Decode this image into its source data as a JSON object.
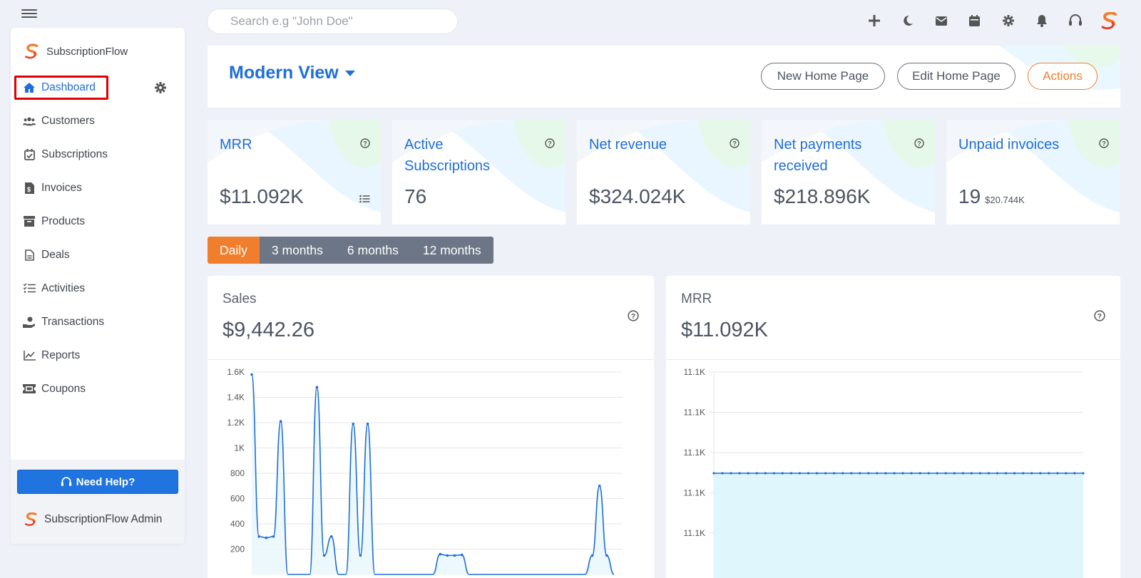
{
  "search": {
    "placeholder": "Search e.g \"John Doe\""
  },
  "topbar": {
    "icons": [
      "plus-icon",
      "moon-icon",
      "mail-icon",
      "calendar-icon",
      "gear-icon",
      "bell-icon",
      "headset-icon",
      "subscriptionflow-logo-icon"
    ]
  },
  "brand": {
    "name": "SubscriptionFlow"
  },
  "sidebar": {
    "items": [
      {
        "label": "Dashboard",
        "icon": "home-icon",
        "active": true
      },
      {
        "label": "Customers",
        "icon": "users-icon"
      },
      {
        "label": "Subscriptions",
        "icon": "calendar-check-icon"
      },
      {
        "label": "Invoices",
        "icon": "invoice-icon"
      },
      {
        "label": "Products",
        "icon": "box-icon"
      },
      {
        "label": "Deals",
        "icon": "document-icon"
      },
      {
        "label": "Activities",
        "icon": "checklist-icon"
      },
      {
        "label": "Transactions",
        "icon": "hand-coin-icon"
      },
      {
        "label": "Reports",
        "icon": "line-chart-icon"
      },
      {
        "label": "Coupons",
        "icon": "ticket-icon"
      }
    ],
    "help_label": "Need Help?",
    "admin_label": "SubscriptionFlow Admin"
  },
  "view": {
    "title": "Modern View",
    "buttons": {
      "new_home": "New Home Page",
      "edit_home": "Edit Home Page",
      "actions": "Actions"
    }
  },
  "cards": [
    {
      "title": "MRR",
      "value": "$11.092K",
      "sub": ""
    },
    {
      "title": "Active Subscriptions",
      "value": "76",
      "sub": ""
    },
    {
      "title": "Net revenue",
      "value": "$324.024K",
      "sub": ""
    },
    {
      "title": "Net payments received",
      "value": "$218.896K",
      "sub": ""
    },
    {
      "title": "Unpaid invoices",
      "value": "19",
      "sub": "$20.744K"
    }
  ],
  "ranges": [
    {
      "label": "Daily",
      "active": true
    },
    {
      "label": "3 months"
    },
    {
      "label": "6 months"
    },
    {
      "label": "12 months"
    }
  ],
  "panels": {
    "sales": {
      "label": "Sales",
      "value": "$9,442.26"
    },
    "mrr": {
      "label": "MRR",
      "value": "$11.092K"
    }
  },
  "colors": {
    "accent": "#1e6fd9",
    "orange": "#f07e2c",
    "active_outline": "#e00000"
  },
  "chart_data": [
    {
      "type": "line",
      "title": "Sales",
      "ytick_labels": [
        "1.6K",
        "1.4K",
        "1.2K",
        "1K",
        "800",
        "600",
        "400",
        "200"
      ],
      "ylim": [
        0,
        1600
      ],
      "series": [
        {
          "values": [
            1580,
            300,
            290,
            300,
            1210,
            0,
            0,
            0,
            0,
            1480,
            150,
            300,
            0,
            0,
            1190,
            150,
            1190,
            0,
            0,
            0,
            0,
            0,
            0,
            0,
            0,
            0,
            160,
            150,
            150,
            155,
            0,
            0,
            0,
            0,
            0,
            0,
            0,
            0,
            0,
            0,
            0,
            0,
            0,
            0,
            0,
            0,
            0,
            150,
            700,
            150,
            0
          ]
        }
      ]
    },
    {
      "type": "area",
      "title": "MRR",
      "ytick_labels": [
        "11.1K",
        "11.1K",
        "11.1K",
        "11.1K",
        "11.1K"
      ],
      "series": [
        {
          "values": [
            11092
          ]
        }
      ]
    }
  ]
}
